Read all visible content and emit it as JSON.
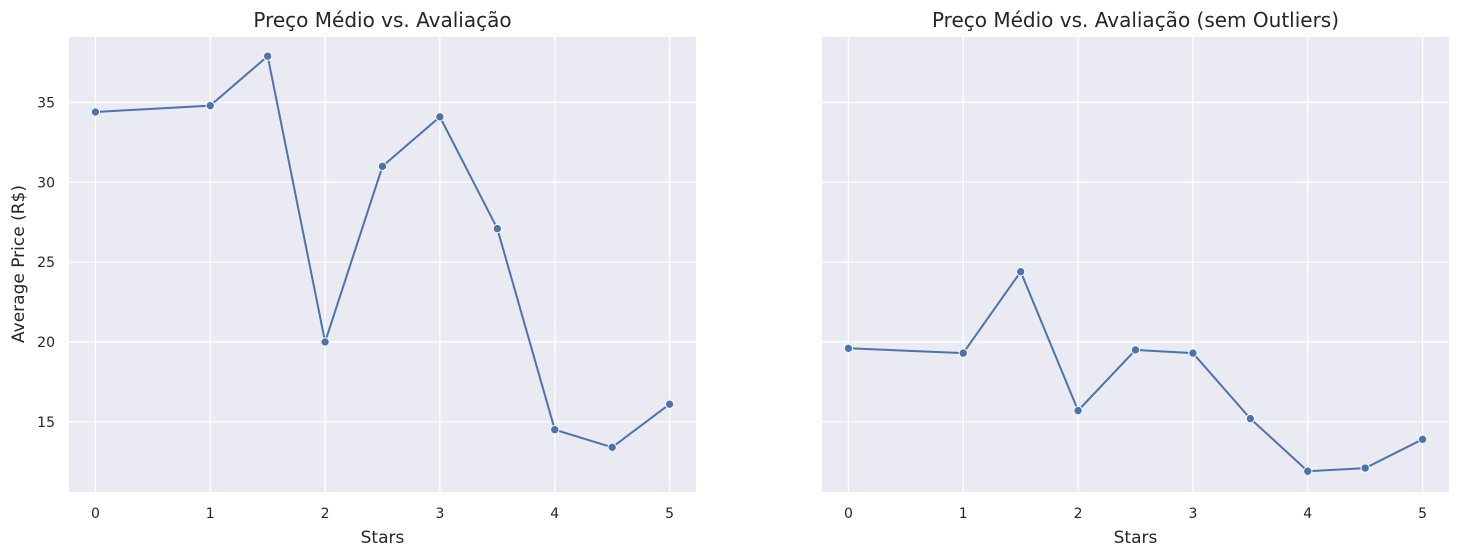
{
  "chart_data": [
    {
      "type": "line",
      "title": "Preço Médio vs. Avaliação",
      "xlabel": "Stars",
      "ylabel": "Average Price (R$)",
      "x": [
        0,
        1,
        1.5,
        2,
        2.5,
        3,
        3.5,
        4,
        4.5,
        5
      ],
      "series": [
        {
          "values": [
            34.4,
            34.8,
            37.9,
            20.0,
            31.0,
            34.1,
            27.1,
            14.5,
            13.4,
            16.1
          ]
        }
      ],
      "xticks": [
        "0",
        "1",
        "2",
        "3",
        "4",
        "5"
      ],
      "yticks": [
        "15",
        "20",
        "25",
        "30",
        "35"
      ],
      "xlim": [
        -0.23,
        5.23
      ],
      "ylim": [
        10.6,
        39.1
      ],
      "grid": true,
      "color": "#4c72b0",
      "background": "#eaeaf2"
    },
    {
      "type": "line",
      "title": "Preço Médio vs. Avaliação (sem Outliers)",
      "xlabel": "Stars",
      "ylabel": "",
      "x": [
        0,
        1,
        1.5,
        2,
        2.5,
        3,
        3.5,
        4,
        4.5,
        5
      ],
      "series": [
        {
          "values": [
            19.6,
            19.3,
            24.4,
            15.7,
            19.5,
            19.3,
            15.2,
            11.9,
            12.1,
            13.9
          ]
        }
      ],
      "xticks": [
        "0",
        "1",
        "2",
        "3",
        "4",
        "5"
      ],
      "yticks": [],
      "xlim": [
        -0.23,
        5.23
      ],
      "ylim": [
        10.6,
        39.1
      ],
      "grid": true,
      "color": "#4c72b0",
      "background": "#eaeaf2"
    }
  ]
}
